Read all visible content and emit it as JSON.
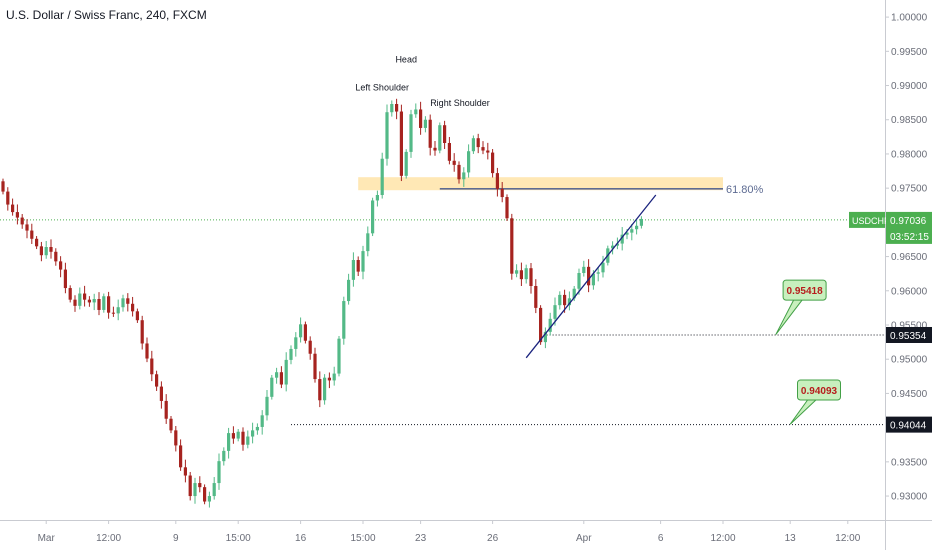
{
  "chart_data": {
    "type": "candlestick",
    "title": "U.S. Dollar / Swiss Franc, 240, FXCM",
    "symbol": "USDCHF",
    "ylim": [
      0.9265,
      1.0025
    ],
    "y_ticks": [
      "1.00000",
      "0.99500",
      "0.99000",
      "0.98500",
      "0.98000",
      "0.97500",
      "0.96500",
      "0.96000",
      "0.95500",
      "0.95000",
      "0.94500",
      "0.93500",
      "0.93000"
    ],
    "x_ticks": [
      "Mar",
      "12:00",
      "9",
      "15:00",
      "16",
      "15:00",
      "23",
      "26",
      "Apr",
      "6",
      "12:00",
      "13",
      "12:00"
    ],
    "last_price": {
      "label": "USDCHF",
      "value": "0.97036",
      "countdown": "03:52:15",
      "color": "#4caf50"
    },
    "closes": [
      0.9745,
      0.9726,
      0.9715,
      0.9707,
      0.9697,
      0.9688,
      0.9676,
      0.9665,
      0.9652,
      0.9664,
      0.9657,
      0.9643,
      0.9631,
      0.9604,
      0.9587,
      0.9578,
      0.9596,
      0.9587,
      0.9583,
      0.9588,
      0.9572,
      0.9592,
      0.9568,
      0.9567,
      0.9576,
      0.9589,
      0.9581,
      0.957,
      0.9557,
      0.9523,
      0.9501,
      0.9478,
      0.946,
      0.9439,
      0.9413,
      0.9396,
      0.9374,
      0.9342,
      0.933,
      0.93,
      0.9319,
      0.9313,
      0.9292,
      0.93,
      0.9319,
      0.9351,
      0.9366,
      0.9392,
      0.9384,
      0.9394,
      0.9375,
      0.9387,
      0.9396,
      0.9401,
      0.9418,
      0.9445,
      0.9473,
      0.9481,
      0.9463,
      0.9499,
      0.9515,
      0.9532,
      0.9551,
      0.9527,
      0.9508,
      0.9471,
      0.944,
      0.9473,
      0.9469,
      0.9479,
      0.953,
      0.9585,
      0.9616,
      0.9645,
      0.9628,
      0.9658,
      0.9684,
      0.9732,
      0.974,
      0.9793,
      0.9861,
      0.9873,
      0.9862,
      0.9768,
      0.9803,
      0.9858,
      0.9865,
      0.9838,
      0.985,
      0.9809,
      0.9805,
      0.9842,
      0.9816,
      0.979,
      0.9784,
      0.9763,
      0.9773,
      0.9804,
      0.9823,
      0.981,
      0.9805,
      0.9802,
      0.9772,
      0.9749,
      0.9737,
      0.9706,
      0.9625,
      0.963,
      0.9617,
      0.9633,
      0.9607,
      0.9575,
      0.9525,
      0.954,
      0.9559,
      0.9579,
      0.9594,
      0.9579,
      0.9589,
      0.9603,
      0.9626,
      0.9635,
      0.9608,
      0.9625,
      0.9627,
      0.9641,
      0.9662,
      0.9666,
      0.9669,
      0.9682,
      0.9685,
      0.969,
      0.9695,
      0.9705
    ],
    "annotations": [
      {
        "text": "Head",
        "price": 0.9934,
        "bar": 84,
        "align": "middle"
      },
      {
        "text": "Left Shoulder",
        "price": 0.9893,
        "bar": 79,
        "align": "middle"
      },
      {
        "text": "Right Shoulder",
        "price": 0.987,
        "bar": 89,
        "align": "start"
      }
    ],
    "zone": {
      "low": 0.9747,
      "high": 0.9766,
      "from_bar": 74,
      "to_bar": 150,
      "color": "#ffe4a8"
    },
    "fib_level": {
      "label": "61.80%",
      "price": 0.9749,
      "from_bar": 91,
      "to_bar": 150
    },
    "trendline": {
      "from_bar": 109,
      "from_price": 0.9502,
      "to_bar": 136,
      "to_price": 0.974
    },
    "levels": [
      {
        "price": 0.95354,
        "label": "0.95354",
        "from_bar": 112
      },
      {
        "price": 0.94044,
        "label": "0.94044",
        "from_bar": 60
      }
    ],
    "targets": [
      {
        "label": "0.95418",
        "price": 0.95418,
        "box_bar": 167,
        "box_price": 0.9601,
        "tip_bar": 161,
        "tip_price": 0.9536
      },
      {
        "label": "0.94093",
        "price": 0.94093,
        "box_bar": 170,
        "box_price": 0.9455,
        "tip_bar": 164,
        "tip_price": 0.9405
      }
    ]
  }
}
